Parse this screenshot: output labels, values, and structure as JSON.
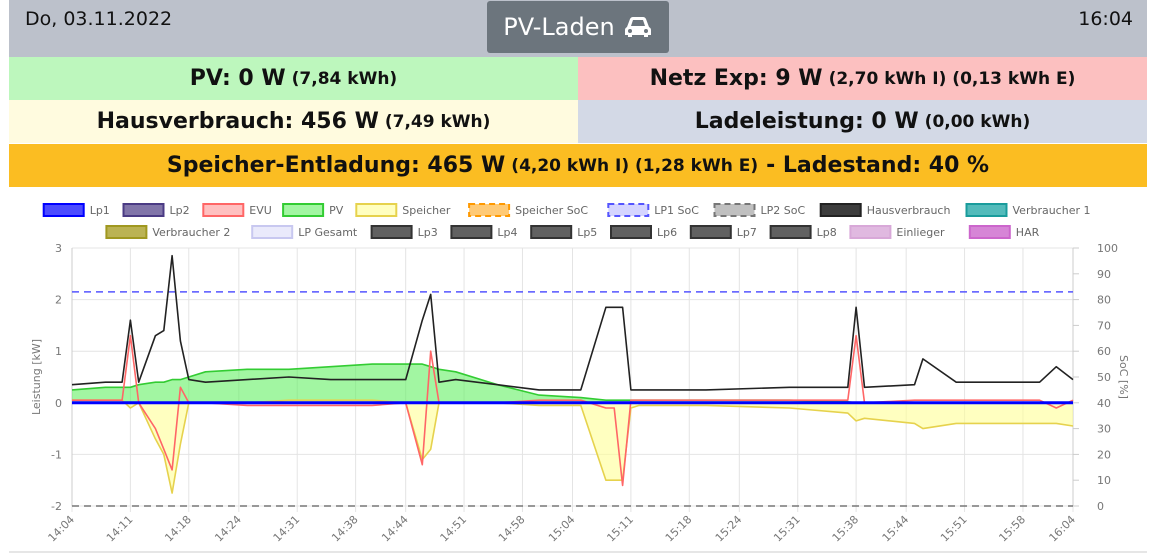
{
  "header": {
    "date": "Do, 03.11.2022",
    "time": "16:04",
    "mode": "PV-Laden"
  },
  "status": {
    "pv": {
      "main": "PV: 0 W",
      "detail": "(7,84 kWh)"
    },
    "netz": {
      "main": "Netz Exp: 9 W",
      "detail": "(2,70 kWh I) (0,13 kWh E)"
    },
    "haus": {
      "main": "Hausverbrauch: 456 W",
      "detail": "(7,49 kWh)"
    },
    "lade": {
      "main": "Ladeleistung: 0 W",
      "detail": "(0,00 kWh)"
    },
    "speicher": {
      "main": "Speicher-Entladung: 465 W",
      "detail": "(4,20 kWh I) (1,28 kWh E)",
      "suffix": "- Ladestand: 40 %"
    }
  },
  "chart_data": {
    "type": "line",
    "ylabel": "Leistung [kW]",
    "y2label": "SoC [%]",
    "legend": [
      {
        "name": "Lp1",
        "color": "#0000ff",
        "fill": "rgba(0,0,255,0.7)"
      },
      {
        "name": "Lp2",
        "color": "#4b3b84",
        "fill": "rgba(75,59,132,0.7)"
      },
      {
        "name": "EVU",
        "color": "#ff6666",
        "fill": "rgba(255,150,150,0.6)"
      },
      {
        "name": "PV",
        "color": "#33cc33",
        "fill": "rgba(100,240,100,0.6)"
      },
      {
        "name": "Speicher",
        "color": "#e6d24d",
        "fill": "rgba(255,255,150,0.6)"
      },
      {
        "name": "Speicher SoC",
        "color": "#ff9900",
        "fill": "rgba(255,180,60,0.7)",
        "dash": true
      },
      {
        "name": "LP1 SoC",
        "color": "#5555ff",
        "fill": "rgba(150,150,255,0.4)",
        "dash": true
      },
      {
        "name": "LP2 SoC",
        "color": "#777777",
        "fill": "rgba(150,150,150,0.6)",
        "dash": true
      },
      {
        "name": "Hausverbrauch",
        "color": "#222222",
        "fill": "rgba(40,40,40,0.9)"
      },
      {
        "name": "Verbraucher 1",
        "color": "#1a9c9c",
        "fill": "rgba(40,170,170,0.8)"
      },
      {
        "name": "Verbraucher 2",
        "color": "#a09820",
        "fill": "rgba(170,160,40,0.8)"
      },
      {
        "name": "LP Gesamt",
        "color": "#c8c8f0",
        "fill": "rgba(225,225,250,0.7)"
      },
      {
        "name": "Lp3",
        "color": "#333333",
        "fill": "rgba(80,80,80,0.9)"
      },
      {
        "name": "Lp4",
        "color": "#333333",
        "fill": "rgba(80,80,80,0.9)"
      },
      {
        "name": "Lp5",
        "color": "#333333",
        "fill": "rgba(80,80,80,0.9)"
      },
      {
        "name": "Lp6",
        "color": "#333333",
        "fill": "rgba(80,80,80,0.9)"
      },
      {
        "name": "Lp7",
        "color": "#333333",
        "fill": "rgba(80,80,80,0.9)"
      },
      {
        "name": "Lp8",
        "color": "#333333",
        "fill": "rgba(80,80,80,0.9)"
      },
      {
        "name": "Einlieger",
        "color": "#d8a8d8",
        "fill": "rgba(216,168,216,0.8)"
      },
      {
        "name": "HAR",
        "color": "#cc66cc",
        "fill": "rgba(204,102,204,0.8)"
      }
    ],
    "x": [
      "14:04",
      "14:08",
      "14:10",
      "14:11",
      "14:12",
      "14:14",
      "14:15",
      "14:16",
      "14:17",
      "14:18",
      "14:20",
      "14:25",
      "14:30",
      "14:35",
      "14:40",
      "14:44",
      "14:46",
      "14:47",
      "14:48",
      "14:50",
      "14:55",
      "15:00",
      "15:05",
      "15:08",
      "15:09",
      "15:10",
      "15:11",
      "15:12",
      "15:20",
      "15:30",
      "15:37",
      "15:38",
      "15:39",
      "15:45",
      "15:46",
      "15:50",
      "16:00",
      "16:02",
      "16:04"
    ],
    "xlim": [
      "14:04",
      "16:04"
    ],
    "xticks": [
      "14:04",
      "14:11",
      "14:18",
      "14:24",
      "14:31",
      "14:38",
      "14:44",
      "14:51",
      "14:58",
      "15:04",
      "15:11",
      "15:18",
      "15:24",
      "15:31",
      "15:38",
      "15:44",
      "15:51",
      "15:58",
      "16:04"
    ],
    "ylim": [
      -2,
      3
    ],
    "yticks": [
      -2,
      -1,
      0,
      1,
      2,
      3
    ],
    "y2lim": [
      0,
      100
    ],
    "y2ticks": [
      0,
      10,
      20,
      30,
      40,
      50,
      60,
      70,
      80,
      90,
      100
    ],
    "grid": true,
    "series": [
      {
        "legend": 3,
        "fill": true,
        "values": [
          0.25,
          0.3,
          0.3,
          0.3,
          0.35,
          0.4,
          0.4,
          0.45,
          0.45,
          0.5,
          0.6,
          0.65,
          0.65,
          0.7,
          0.75,
          0.75,
          0.75,
          0.7,
          0.65,
          0.6,
          0.35,
          0.15,
          0.1,
          0.05,
          0.05,
          0.05,
          0.05,
          0.05,
          0.05,
          0.05,
          0.02,
          0,
          0,
          0,
          0,
          0,
          0,
          0,
          0
        ]
      },
      {
        "legend": 4,
        "fill": true,
        "values": [
          0.05,
          0.05,
          0.05,
          -0.1,
          0,
          -0.7,
          -1.0,
          -1.75,
          -0.8,
          0,
          0,
          0,
          0.05,
          0.05,
          0.05,
          0,
          -1.1,
          -0.9,
          0,
          0,
          0,
          -0.05,
          -0.05,
          -1.5,
          -1.5,
          -1.5,
          -0.1,
          -0.05,
          -0.05,
          -0.1,
          -0.2,
          -0.35,
          -0.3,
          -0.4,
          -0.5,
          -0.4,
          -0.4,
          -0.4,
          -0.45
        ]
      },
      {
        "legend": 6,
        "axis": "y2",
        "values": [
          83,
          83,
          83,
          83,
          83,
          83,
          83,
          83,
          83,
          83,
          83,
          83,
          83,
          83,
          83,
          83,
          83,
          83,
          83,
          83,
          83,
          83,
          83,
          83,
          83,
          83,
          83,
          83,
          83,
          83,
          83,
          83,
          83,
          83,
          83,
          83,
          83,
          83,
          83
        ]
      },
      {
        "legend": 7,
        "axis": "y2",
        "values": [
          0,
          0,
          0,
          0,
          0,
          0,
          0,
          0,
          0,
          0,
          0,
          0,
          0,
          0,
          0,
          0,
          0,
          0,
          0,
          0,
          0,
          0,
          0,
          0,
          0,
          0,
          0,
          0,
          0,
          0,
          0,
          0,
          0,
          0,
          0,
          0,
          0,
          0,
          0
        ]
      },
      {
        "legend": 5,
        "axis": "y2",
        "values": [
          40,
          40,
          40,
          40,
          40,
          40,
          40,
          40,
          40,
          40,
          40,
          40,
          40,
          40,
          40,
          40,
          40,
          40,
          40,
          40,
          40,
          40,
          40,
          40,
          40,
          40,
          40,
          40,
          40,
          40,
          40,
          40,
          40,
          40,
          40,
          40,
          40,
          40,
          40
        ]
      },
      {
        "legend": 2,
        "values": [
          0.05,
          0.05,
          0.05,
          1.3,
          0,
          -0.5,
          -0.9,
          -1.3,
          0.3,
          0,
          0,
          -0.05,
          -0.05,
          -0.05,
          -0.05,
          0,
          -1.2,
          1.0,
          0,
          0,
          0,
          0.05,
          0.05,
          -0.1,
          -0.1,
          -1.6,
          0.05,
          0.05,
          0.05,
          0.05,
          0.05,
          1.3,
          0,
          0.05,
          0.05,
          0.05,
          0.05,
          -0.1,
          0.05
        ]
      },
      {
        "legend": 8,
        "values": [
          0.35,
          0.4,
          0.4,
          1.6,
          0.4,
          1.3,
          1.4,
          2.85,
          1.2,
          0.45,
          0.4,
          0.45,
          0.5,
          0.45,
          0.45,
          0.45,
          1.6,
          2.1,
          0.4,
          0.45,
          0.35,
          0.25,
          0.25,
          1.85,
          1.85,
          1.85,
          0.25,
          0.25,
          0.25,
          0.3,
          0.3,
          1.85,
          0.3,
          0.35,
          0.85,
          0.4,
          0.4,
          0.7,
          0.45
        ]
      },
      {
        "legend": 0,
        "width": 3,
        "values": [
          0,
          0,
          0,
          0,
          0,
          0,
          0,
          0,
          0,
          0,
          0,
          0,
          0,
          0,
          0,
          0,
          0,
          0,
          0,
          0,
          0,
          0,
          0,
          0,
          0,
          0,
          0,
          0,
          0,
          0,
          0,
          0,
          0,
          0,
          0,
          0,
          0,
          0,
          0
        ]
      }
    ]
  }
}
